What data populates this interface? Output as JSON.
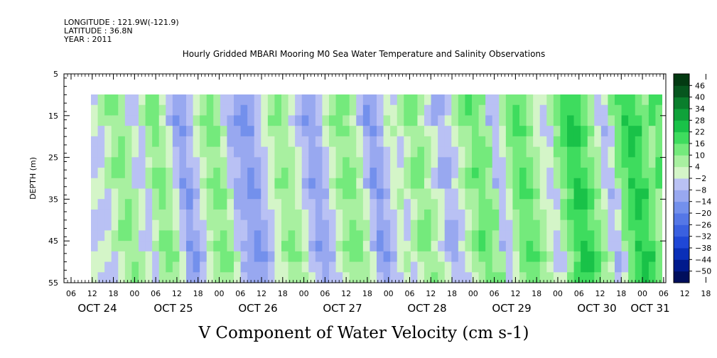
{
  "header": {
    "longitude": "LONGITUDE : 121.9W(-121.9)",
    "latitude": "LATITUDE : 36.8N",
    "year": "YEAR : 2011"
  },
  "chart_data": {
    "type": "heatmap",
    "title": "Hourly Gridded MBARI Mooring M0 Sea Water Temperature and Salinity Observations",
    "xlabel": "V Component of Water Velocity (cm s-1)",
    "ylabel": "DEPTH (m)",
    "ylim": [
      55,
      5
    ],
    "y_ticks": [
      5,
      15,
      25,
      35,
      45,
      55
    ],
    "x_hour_ticks": [
      "06",
      "12",
      "18",
      "00",
      "06",
      "12",
      "18",
      "00",
      "06",
      "12",
      "18",
      "00",
      "06",
      "12",
      "18",
      "00",
      "06",
      "12",
      "18",
      "00",
      "06",
      "12",
      "18",
      "00",
      "06",
      "12",
      "18",
      "00",
      "06",
      "12",
      "18",
      "00"
    ],
    "x_day_labels": [
      "OCT 24",
      "OCT 25",
      "OCT 26",
      "OCT 27",
      "OCT 28",
      "OCT 29",
      "OCT 30",
      "OCT 31"
    ],
    "data_depth_range_m": [
      10,
      55
    ],
    "data_start": "OCT 24 12:00",
    "colorbar": {
      "levels": [
        -50,
        -44,
        -38,
        -32,
        -26,
        -20,
        -14,
        -8,
        -2,
        4,
        10,
        16,
        22,
        28,
        34,
        40,
        46
      ],
      "colors": [
        "#000e5c",
        "#001a8c",
        "#0a2fb8",
        "#1f47d6",
        "#3a60e0",
        "#5577e6",
        "#7390ec",
        "#98a8f0",
        "#b9c1f4",
        "#d4f5c8",
        "#a8f0a0",
        "#74ea7c",
        "#3edc5e",
        "#19c248",
        "#0fa23a",
        "#0a7e2c",
        "#06561e",
        "#033a12"
      ]
    },
    "velocity_profile_series": {
      "description_values_cm_s": [
        -3,
        3,
        9,
        11,
        7,
        -2,
        -5,
        6,
        12,
        10,
        2,
        -8,
        -14,
        -9,
        -2,
        6,
        10,
        12,
        5,
        -6,
        -10,
        -12,
        -14,
        -9,
        -3,
        2,
        8,
        10,
        6,
        -2,
        -7,
        -12,
        -10,
        -4,
        4,
        9,
        12,
        8,
        2,
        -8,
        -14,
        -10,
        -3,
        3,
        -2,
        6,
        9,
        11,
        5,
        -1,
        -9,
        -7,
        -2,
        6,
        10,
        14,
        12,
        8,
        -6,
        -3,
        9,
        14,
        16,
        12,
        6,
        0,
        -4,
        8,
        14,
        20,
        22,
        18,
        12,
        6,
        -6,
        -4,
        12,
        18,
        24,
        20,
        14,
        8,
        16,
        14
      ]
    }
  }
}
